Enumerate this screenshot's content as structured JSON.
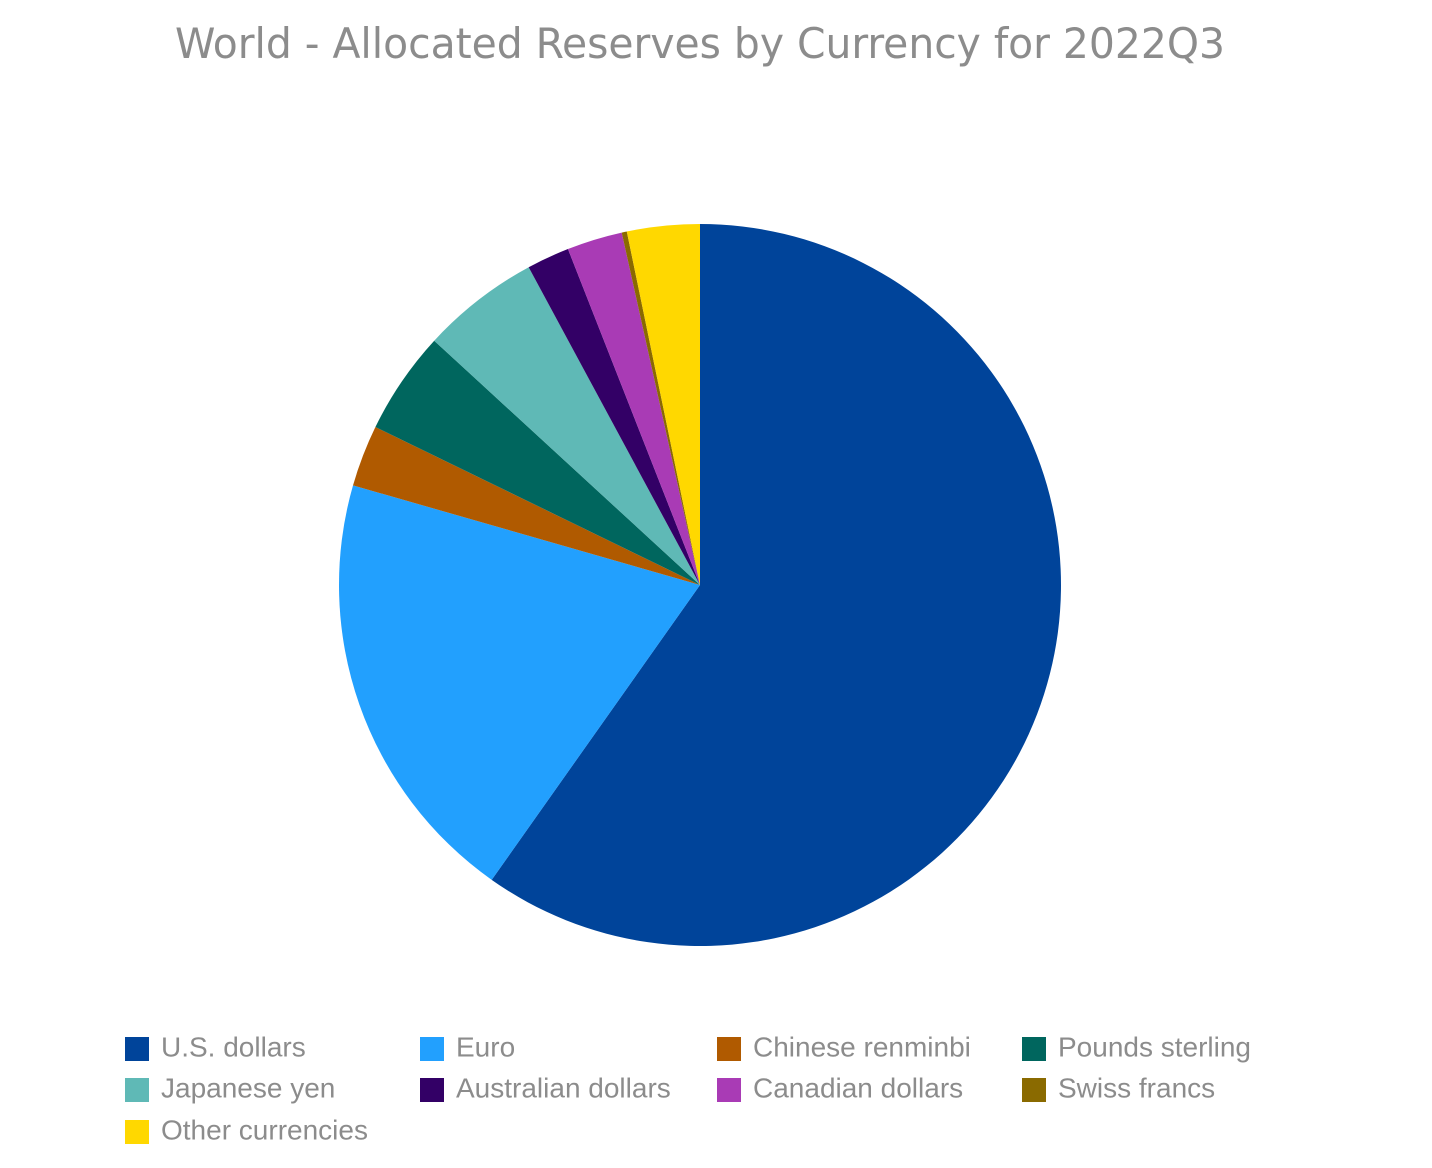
{
  "chart_data": {
    "type": "pie",
    "title": "World - Allocated Reserves by Currency for 2022Q3",
    "categories": [
      "U.S. dollars",
      "Euro",
      "Chinese renminbi",
      "Pounds sterling",
      "Japanese yen",
      "Australian dollars",
      "Canadian dollars",
      "Swiss francs",
      "Other currencies"
    ],
    "values": [
      59.79,
      19.66,
      2.76,
      4.62,
      5.3,
      1.91,
      2.48,
      0.23,
      3.25
    ],
    "colors": [
      "#00449a",
      "#22a0fe",
      "#b05a00",
      "#00665e",
      "#5fb9b6",
      "#330066",
      "#a93bb5",
      "#8a6a00",
      "#ffd800"
    ],
    "legend": "bottom"
  }
}
